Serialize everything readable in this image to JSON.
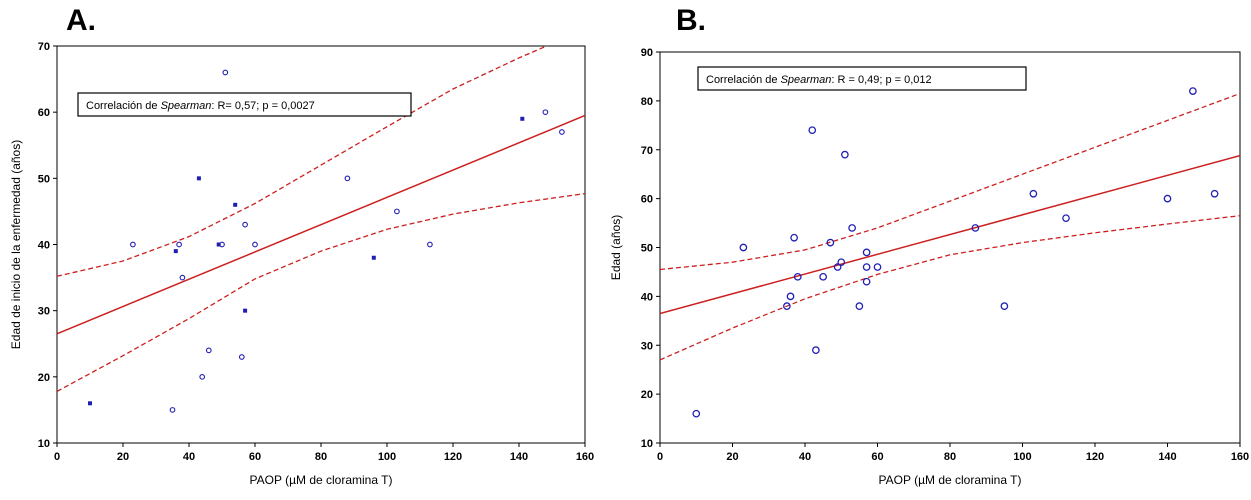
{
  "chart_data": [
    {
      "panel": "A.",
      "type": "scatter",
      "xlabel": "PAOP (µM de cloramina T)",
      "ylabel": "Edad de inicio de la enfermedad (años)",
      "xlim": [
        0,
        160
      ],
      "ylim": [
        10,
        70
      ],
      "xticks": [
        0,
        20,
        40,
        60,
        80,
        100,
        120,
        140,
        160
      ],
      "yticks": [
        10,
        20,
        30,
        40,
        50,
        60,
        70
      ],
      "annotation": {
        "prefix": "Correlación de ",
        "emph": "Spearman",
        "suffix": ": R= 0,57; p = 0,0027"
      },
      "marker_color": "#1f1fb4",
      "line_color": "#cc2020",
      "points": [
        {
          "x": 10,
          "y": 16
        },
        {
          "x": 23,
          "y": 40
        },
        {
          "x": 35,
          "y": 15
        },
        {
          "x": 36,
          "y": 39
        },
        {
          "x": 37,
          "y": 40
        },
        {
          "x": 38,
          "y": 35
        },
        {
          "x": 43,
          "y": 50
        },
        {
          "x": 44,
          "y": 20
        },
        {
          "x": 46,
          "y": 24
        },
        {
          "x": 49,
          "y": 40
        },
        {
          "x": 50,
          "y": 40
        },
        {
          "x": 51,
          "y": 66
        },
        {
          "x": 54,
          "y": 46
        },
        {
          "x": 56,
          "y": 23
        },
        {
          "x": 57,
          "y": 43
        },
        {
          "x": 57,
          "y": 30
        },
        {
          "x": 60,
          "y": 40
        },
        {
          "x": 88,
          "y": 50
        },
        {
          "x": 96,
          "y": 38
        },
        {
          "x": 103,
          "y": 45
        },
        {
          "x": 113,
          "y": 40
        },
        {
          "x": 141,
          "y": 59
        },
        {
          "x": 148,
          "y": 60
        },
        {
          "x": 153,
          "y": 57
        }
      ],
      "fit_line": [
        [
          0,
          26.5
        ],
        [
          160,
          59.5
        ]
      ],
      "ci_upper": [
        [
          0,
          35.2
        ],
        [
          20,
          37.5
        ],
        [
          40,
          41.2
        ],
        [
          60,
          46.2
        ],
        [
          80,
          52.0
        ],
        [
          100,
          57.8
        ],
        [
          120,
          63.5
        ],
        [
          140,
          68.2
        ],
        [
          160,
          72.5
        ]
      ],
      "ci_lower": [
        [
          0,
          17.8
        ],
        [
          20,
          23.2
        ],
        [
          40,
          28.8
        ],
        [
          60,
          34.8
        ],
        [
          80,
          39.0
        ],
        [
          100,
          42.3
        ],
        [
          120,
          44.6
        ],
        [
          140,
          46.3
        ],
        [
          160,
          47.7
        ]
      ]
    },
    {
      "panel": "B.",
      "type": "scatter",
      "xlabel": "PAOP (µM de cloramina T)",
      "ylabel": "Edad (años)",
      "xlim": [
        0,
        160
      ],
      "ylim": [
        10,
        90
      ],
      "xticks": [
        0,
        20,
        40,
        60,
        80,
        100,
        120,
        140,
        160
      ],
      "yticks": [
        10,
        20,
        30,
        40,
        50,
        60,
        70,
        80,
        90
      ],
      "annotation": {
        "prefix": "Correlación de ",
        "emph": "Spearman",
        "suffix": ": R = 0,49; p = 0,012"
      },
      "marker_color": "#1f1fb4",
      "line_color": "#cc2020",
      "points": [
        {
          "x": 10,
          "y": 16
        },
        {
          "x": 23,
          "y": 50
        },
        {
          "x": 35,
          "y": 38
        },
        {
          "x": 36,
          "y": 40
        },
        {
          "x": 37,
          "y": 52
        },
        {
          "x": 38,
          "y": 44
        },
        {
          "x": 42,
          "y": 74
        },
        {
          "x": 43,
          "y": 29
        },
        {
          "x": 45,
          "y": 44
        },
        {
          "x": 47,
          "y": 51
        },
        {
          "x": 49,
          "y": 46
        },
        {
          "x": 50,
          "y": 47
        },
        {
          "x": 51,
          "y": 69
        },
        {
          "x": 53,
          "y": 54
        },
        {
          "x": 55,
          "y": 38
        },
        {
          "x": 57,
          "y": 49
        },
        {
          "x": 57,
          "y": 46
        },
        {
          "x": 57,
          "y": 43
        },
        {
          "x": 60,
          "y": 46
        },
        {
          "x": 87,
          "y": 54
        },
        {
          "x": 95,
          "y": 38
        },
        {
          "x": 103,
          "y": 61
        },
        {
          "x": 112,
          "y": 56
        },
        {
          "x": 140,
          "y": 60
        },
        {
          "x": 147,
          "y": 82
        },
        {
          "x": 153,
          "y": 61
        }
      ],
      "fit_line": [
        [
          0,
          36.5
        ],
        [
          160,
          68.8
        ]
      ],
      "ci_upper": [
        [
          0,
          45.5
        ],
        [
          20,
          47.0
        ],
        [
          40,
          49.5
        ],
        [
          60,
          54.0
        ],
        [
          80,
          59.5
        ],
        [
          100,
          65.0
        ],
        [
          120,
          70.5
        ],
        [
          140,
          76.0
        ],
        [
          160,
          81.5
        ]
      ],
      "ci_lower": [
        [
          0,
          27.0
        ],
        [
          20,
          33.5
        ],
        [
          40,
          39.5
        ],
        [
          60,
          44.5
        ],
        [
          80,
          48.5
        ],
        [
          100,
          51.0
        ],
        [
          120,
          53.0
        ],
        [
          140,
          54.8
        ],
        [
          160,
          56.5
        ]
      ]
    }
  ]
}
